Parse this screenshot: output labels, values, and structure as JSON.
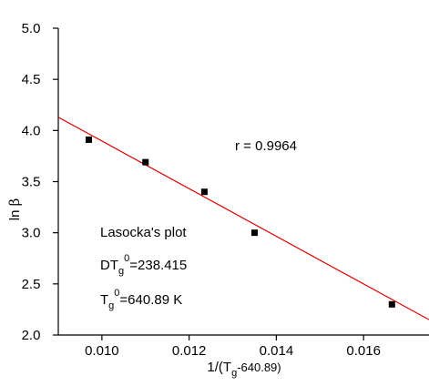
{
  "chart_data": {
    "type": "scatter",
    "title": "",
    "xlabel": {
      "main": "1/(T",
      "sub": "g",
      "tail": "-640.89)"
    },
    "ylabel": {
      "main": "ln ",
      "symbol": "β"
    },
    "xlim": [
      0.009,
      0.0175
    ],
    "ylim": [
      2.0,
      5.0
    ],
    "x_ticks": [
      0.01,
      0.012,
      0.014,
      0.016
    ],
    "x_tick_labels": [
      "0.010",
      "0.012",
      "0.014",
      "0.016"
    ],
    "y_ticks": [
      2.0,
      2.5,
      3.0,
      3.5,
      4.0,
      4.5,
      5.0
    ],
    "y_tick_labels": [
      "2.0",
      "2.5",
      "3.0",
      "3.5",
      "4.0",
      "4.5",
      "5.0"
    ],
    "grid": false,
    "series": [
      {
        "points": [
          {
            "x": 0.0097,
            "y": 3.91
          },
          {
            "x": 0.011,
            "y": 3.69
          },
          {
            "x": 0.01235,
            "y": 3.4
          },
          {
            "x": 0.0135,
            "y": 3.0
          },
          {
            "x": 0.01665,
            "y": 2.3
          }
        ],
        "marker_color": "#000000"
      }
    ],
    "fit_line": {
      "x": [
        0.009,
        0.0175
      ],
      "y": [
        4.13,
        2.15
      ],
      "color": "#e00000"
    },
    "annotations": {
      "r": "r = 0.9964",
      "plot_name": "Lasocka's plot",
      "dtg_prefix": "DT",
      "dtg_sub": "g",
      "dtg_sup": "0",
      "dtg_value": "=238.415",
      "tg_prefix": "T",
      "tg_sub": "g",
      "tg_sup": "0",
      "tg_value": "=640.89 K"
    }
  }
}
